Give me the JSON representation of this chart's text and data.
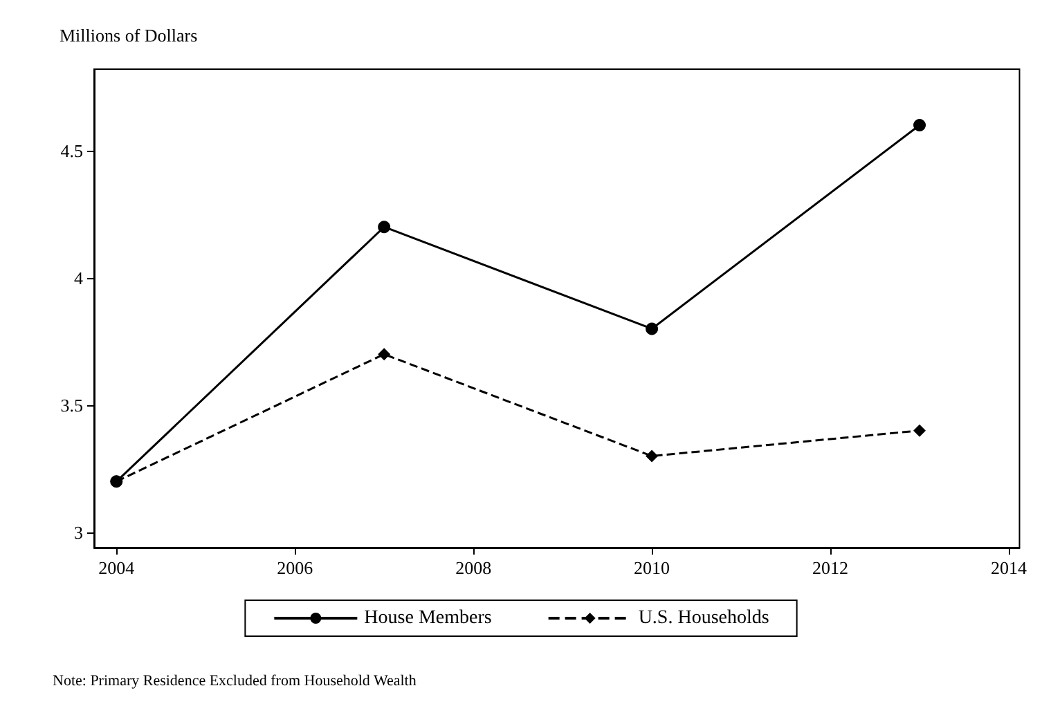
{
  "chart_data": {
    "type": "line",
    "ylabel": "Millions of Dollars",
    "x": [
      2004,
      2007,
      2010,
      2013
    ],
    "series": [
      {
        "name": "House Members",
        "color": "#000000",
        "values": [
          3.2,
          4.2,
          3.8,
          4.6
        ],
        "marker": "circle",
        "line_style": "solid"
      },
      {
        "name": "U.S. Households",
        "color": "#000000",
        "values": [
          3.2,
          3.7,
          3.3,
          3.4
        ],
        "marker": "diamond",
        "line_style": "dashed"
      }
    ],
    "xlim": [
      2003.75,
      2014.12
    ],
    "xticks": [
      2004,
      2006,
      2008,
      2010,
      2012,
      2014
    ],
    "ylim": [
      2.94,
      4.82
    ],
    "yticks": [
      3,
      3.5,
      4,
      4.5
    ],
    "grid": false,
    "legend": "bottom",
    "annotations": [
      "Note: Primary Residence Excluded from Household Wealth"
    ]
  }
}
